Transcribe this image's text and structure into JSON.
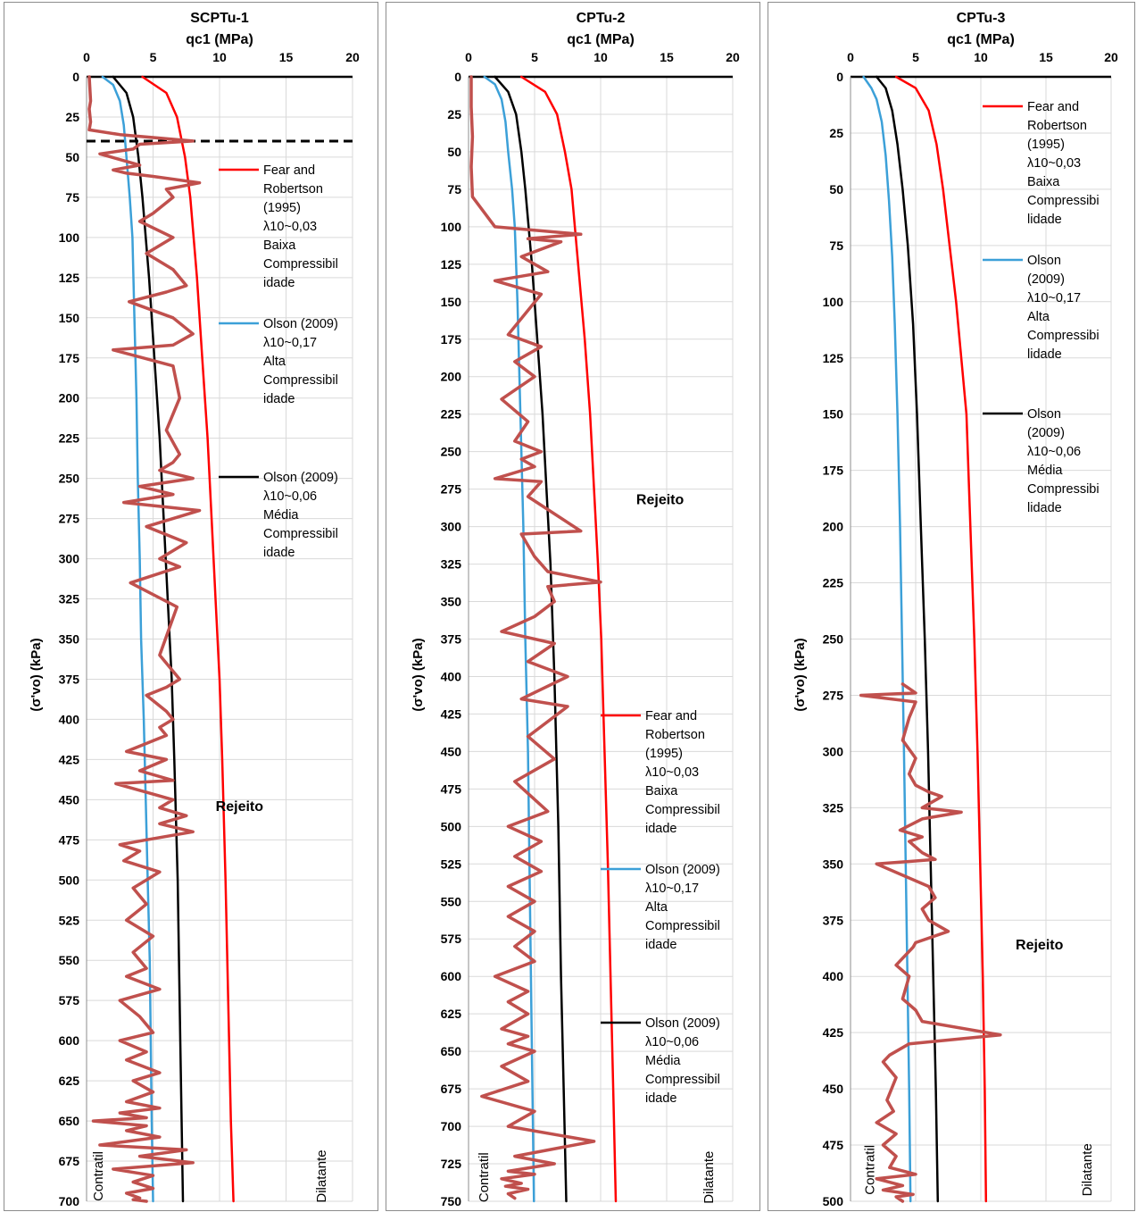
{
  "chart_data": [
    {
      "type": "line",
      "title": "SCPTu-1",
      "xlabel": "qc1 (MPa)",
      "ylabel": "(σ'vo) (kPa)",
      "xlim": [
        0,
        20
      ],
      "ylim": [
        0,
        700
      ],
      "y_inverted": true,
      "x_ticks": [
        0,
        5,
        10,
        15,
        20
      ],
      "y_ticks": [
        0,
        25,
        50,
        75,
        100,
        125,
        150,
        175,
        200,
        225,
        250,
        275,
        300,
        325,
        350,
        375,
        400,
        425,
        450,
        475,
        500,
        525,
        550,
        575,
        600,
        625,
        650,
        675,
        700
      ],
      "grid": true,
      "legend_position": "upper-middle-right",
      "series": [
        {
          "name": "Fear and Robertson (1995) λ10~0,03 Baixa Compressibilidade",
          "color": "#ff0000",
          "kind": "curve",
          "x": [
            4.2,
            6.0,
            6.8,
            7.4,
            7.8,
            8.3,
            8.7,
            9.1,
            9.4,
            9.7,
            10.0,
            10.2,
            10.45,
            10.65,
            10.85,
            11.05
          ],
          "y": [
            0,
            10,
            25,
            50,
            75,
            125,
            175,
            225,
            275,
            325,
            375,
            425,
            500,
            575,
            650,
            700
          ]
        },
        {
          "name": "Olson (2009) λ10~0,17 Alta Compressibilidade",
          "color": "#3ca0d8",
          "kind": "curve",
          "x": [
            1.2,
            2.0,
            2.5,
            2.8,
            3.0,
            3.25,
            3.45,
            3.6,
            3.75,
            3.85,
            4.0,
            4.1,
            4.3,
            4.45,
            4.6,
            4.75,
            4.9,
            5.0
          ],
          "y": [
            0,
            5,
            15,
            30,
            50,
            75,
            100,
            150,
            200,
            250,
            300,
            350,
            400,
            450,
            500,
            550,
            650,
            700
          ]
        },
        {
          "name": "Olson (2009) λ10~0,06 Média Compressibilidade",
          "color": "#000000",
          "kind": "curve",
          "x": [
            2.0,
            3.0,
            3.5,
            3.9,
            4.2,
            4.7,
            5.1,
            5.5,
            5.8,
            6.1,
            6.4,
            6.6,
            6.85,
            7.05,
            7.25
          ],
          "y": [
            0,
            10,
            25,
            50,
            75,
            125,
            175,
            225,
            275,
            325,
            375,
            425,
            500,
            600,
            700
          ]
        },
        {
          "name": "",
          "color": "#c0504d",
          "kind": "measured",
          "x": [
            0.2,
            0.3,
            0.2,
            0.3,
            0.2,
            2.5,
            8.0,
            4.0,
            3.5,
            1.0,
            4.0,
            2.0,
            3.0,
            5.0,
            8.5,
            6.0,
            6.5,
            5.0,
            4.0,
            6.5,
            4.5,
            6.5,
            7.5,
            6.0,
            3.2,
            6.5,
            8.0,
            6.5,
            2.0,
            6.5,
            7.0,
            6.0,
            7.0,
            6.5,
            5.5,
            8.0,
            4.0,
            6.5,
            2.8,
            8.5,
            4.5,
            7.5,
            5.5,
            7.0,
            3.3,
            6.8,
            5.5,
            7.0,
            6.0,
            4.5,
            6.0,
            6.5,
            5.5,
            6.0,
            3.0,
            6.0,
            4.0,
            6.5,
            2.2,
            6.5,
            5.5,
            7.5,
            5.5,
            8.0,
            4.5,
            2.5,
            4.0,
            2.8,
            5.5,
            3.5,
            4.5,
            3.0,
            5.0,
            3.5,
            4.5,
            3.0,
            5.5,
            2.5,
            4.0,
            5.0,
            2.5,
            4.5,
            3.0,
            5.5,
            3.5,
            5.0,
            3.0,
            5.5,
            2.5,
            4.5,
            0.5,
            4.5,
            3.0,
            5.5,
            1.0,
            7.5,
            4.0,
            8.0,
            2.0,
            5.0,
            3.5,
            5.0,
            3.0,
            4.0,
            3.5,
            4.5
          ],
          "y": [
            0,
            15,
            20,
            28,
            33,
            36,
            40,
            42,
            45,
            48,
            55,
            58,
            60,
            62,
            66,
            70,
            75,
            85,
            90,
            100,
            110,
            120,
            130,
            134,
            140,
            150,
            160,
            167,
            170,
            180,
            200,
            220,
            235,
            240,
            245,
            250,
            255,
            260,
            265,
            270,
            280,
            290,
            300,
            305,
            315,
            330,
            360,
            375,
            380,
            385,
            395,
            400,
            405,
            410,
            420,
            425,
            432,
            438,
            440,
            450,
            455,
            460,
            465,
            470,
            475,
            478,
            482,
            488,
            495,
            505,
            515,
            525,
            535,
            545,
            555,
            560,
            568,
            575,
            585,
            595,
            600,
            607,
            612,
            620,
            625,
            632,
            638,
            642,
            645,
            648,
            650,
            653,
            656,
            660,
            665,
            668,
            672,
            676,
            680,
            684,
            688,
            692,
            695,
            698,
            699,
            700
          ]
        }
      ],
      "annotations": [
        {
          "text": "Rejeito",
          "x": 11.5,
          "y": 457
        },
        {
          "text": "Contratil",
          "x": 1.2,
          "y": 690
        },
        {
          "text": "Dilatante",
          "x": 18.0,
          "y": 690
        }
      ],
      "reference_line": {
        "style": "dashed",
        "color": "#000000",
        "y": 40
      }
    },
    {
      "type": "line",
      "title": "CPTu-2",
      "xlabel": "qc1 (MPa)",
      "ylabel": "(σ'vo) (kPa)",
      "xlim": [
        0,
        20
      ],
      "ylim": [
        0,
        750
      ],
      "y_inverted": true,
      "x_ticks": [
        0,
        5,
        10,
        15,
        20
      ],
      "y_ticks": [
        0,
        25,
        50,
        75,
        100,
        125,
        150,
        175,
        200,
        225,
        250,
        275,
        300,
        325,
        350,
        375,
        400,
        425,
        450,
        475,
        500,
        525,
        550,
        575,
        600,
        625,
        650,
        675,
        700,
        725,
        750
      ],
      "grid": true,
      "legend_position": "lower-right",
      "series": [
        {
          "name": "Fear and Robertson (1995) λ10~0,03 Baixa Compressibilidade",
          "color": "#ff0000",
          "kind": "curve",
          "x": [
            4.0,
            5.8,
            6.7,
            7.3,
            7.8,
            8.3,
            8.8,
            9.2,
            9.5,
            9.8,
            10.05,
            10.3,
            10.55,
            10.75,
            10.95,
            11.15
          ],
          "y": [
            0,
            10,
            25,
            50,
            75,
            125,
            175,
            225,
            275,
            325,
            375,
            450,
            525,
            600,
            675,
            750
          ]
        },
        {
          "name": "Olson (2009) λ10~0,17 Alta Compressibilidade",
          "color": "#3ca0d8",
          "kind": "curve",
          "x": [
            1.2,
            2.0,
            2.5,
            2.8,
            3.0,
            3.3,
            3.5,
            3.7,
            3.85,
            4.0,
            4.15,
            4.3,
            4.5,
            4.65,
            4.8,
            4.95
          ],
          "y": [
            0,
            5,
            15,
            30,
            50,
            75,
            100,
            150,
            200,
            250,
            300,
            375,
            450,
            550,
            650,
            750
          ]
        },
        {
          "name": "Olson (2009) λ10~0,06 Média Compressibilidade",
          "color": "#000000",
          "kind": "curve",
          "x": [
            2.0,
            3.0,
            3.6,
            4.0,
            4.3,
            4.8,
            5.2,
            5.6,
            5.9,
            6.2,
            6.5,
            6.8,
            7.0,
            7.2,
            7.4
          ],
          "y": [
            0,
            10,
            25,
            50,
            75,
            125,
            175,
            225,
            275,
            325,
            400,
            500,
            600,
            675,
            750
          ]
        },
        {
          "name": "",
          "color": "#c0504d",
          "kind": "measured",
          "x": [
            0.2,
            0.2,
            0.3,
            0.2,
            0.3,
            2.0,
            8.5,
            4.5,
            7.0,
            4.0,
            6.0,
            2.0,
            5.5,
            3.0,
            5.5,
            3.5,
            5.0,
            2.5,
            4.5,
            3.5,
            5.5,
            4.0,
            5.0,
            2.0,
            5.5,
            4.5,
            8.5,
            4.0,
            5.0,
            6.0,
            10.0,
            6.0,
            6.5,
            5.0,
            2.5,
            6.5,
            4.5,
            7.5,
            4.0,
            7.5,
            4.5,
            6.5,
            3.5,
            6.0,
            3.0,
            5.5,
            3.5,
            5.5,
            3.0,
            5.0,
            3.0,
            5.0,
            3.5,
            5.0,
            2.0,
            4.5,
            3.0,
            4.5,
            2.5,
            4.5,
            3.0,
            5.0,
            2.5,
            4.5,
            1.0,
            5.0,
            3.0,
            9.5,
            3.5,
            6.5,
            3.0,
            5.0,
            2.5,
            4.0,
            2.8,
            4.5,
            3.0,
            3.5
          ],
          "y": [
            0,
            20,
            40,
            60,
            80,
            100,
            105,
            108,
            110,
            120,
            130,
            136,
            145,
            172,
            180,
            190,
            200,
            215,
            230,
            243,
            250,
            255,
            260,
            268,
            270,
            280,
            303,
            305,
            320,
            330,
            337,
            340,
            350,
            360,
            370,
            378,
            390,
            400,
            415,
            420,
            440,
            455,
            470,
            490,
            500,
            510,
            520,
            530,
            540,
            550,
            560,
            570,
            580,
            590,
            600,
            610,
            617,
            625,
            635,
            640,
            645,
            650,
            660,
            670,
            680,
            690,
            700,
            710,
            720,
            725,
            730,
            732,
            735,
            738,
            740,
            742,
            745,
            748
          ]
        }
      ],
      "annotations": [
        {
          "text": "Rejeito",
          "x": 14.5,
          "y": 285
        },
        {
          "text": "Contratil",
          "x": 1.5,
          "y": 740
        },
        {
          "text": "Dilatante",
          "x": 18.5,
          "y": 740
        }
      ]
    },
    {
      "type": "line",
      "title": "CPTu-3",
      "xlabel": "qc1 (MPa)",
      "ylabel": "(σ'vo) (kPa)",
      "xlim": [
        0,
        20
      ],
      "ylim": [
        0,
        500
      ],
      "y_inverted": true,
      "x_ticks": [
        0,
        5,
        10,
        15,
        20
      ],
      "y_ticks": [
        0,
        25,
        50,
        75,
        100,
        125,
        150,
        175,
        200,
        225,
        250,
        275,
        300,
        325,
        350,
        375,
        400,
        425,
        450,
        475,
        500
      ],
      "grid": true,
      "legend_position": "upper-right",
      "series": [
        {
          "name": "Fear and Robertson (1995) λ10~0,03 Baixa Compressibilidade",
          "color": "#ff0000",
          "kind": "curve",
          "x": [
            3.5,
            5.0,
            6.0,
            6.6,
            7.1,
            7.6,
            8.1,
            8.5,
            8.9,
            9.2,
            9.5,
            9.75,
            9.95,
            10.15,
            10.3,
            10.4
          ],
          "y": [
            0,
            5,
            15,
            30,
            50,
            75,
            100,
            125,
            150,
            200,
            250,
            300,
            350,
            400,
            450,
            500
          ]
        },
        {
          "name": "Olson (2009) λ10~0,17 Alta Compressibilidade",
          "color": "#3ca0d8",
          "kind": "curve",
          "x": [
            1.0,
            1.6,
            2.0,
            2.4,
            2.7,
            2.95,
            3.2,
            3.4,
            3.6,
            3.8,
            3.95,
            4.1,
            4.3,
            4.5,
            4.6
          ],
          "y": [
            0,
            5,
            10,
            20,
            35,
            55,
            80,
            110,
            150,
            200,
            250,
            300,
            375,
            450,
            500
          ]
        },
        {
          "name": "Olson (2009) λ10~0,06 Média Compressibilidade",
          "color": "#000000",
          "kind": "curve",
          "x": [
            2.0,
            2.7,
            3.2,
            3.6,
            4.0,
            4.4,
            4.8,
            5.1,
            5.4,
            5.7,
            5.95,
            6.15,
            6.35,
            6.55,
            6.7
          ],
          "y": [
            0,
            5,
            15,
            30,
            50,
            75,
            110,
            150,
            200,
            250,
            300,
            350,
            400,
            450,
            500
          ]
        },
        {
          "name": "",
          "color": "#c0504d",
          "kind": "measured",
          "x": [
            4.0,
            5.0,
            0.8,
            5.0,
            4.5,
            4.0,
            5.0,
            4.5,
            5.0,
            6.0,
            7.0,
            5.5,
            8.5,
            5.5,
            3.8,
            5.5,
            4.5,
            5.5,
            6.5,
            2.0,
            6.0,
            6.5,
            5.5,
            6.0,
            7.5,
            5.0,
            4.8,
            3.5,
            4.5,
            4.0,
            5.0,
            5.5,
            11.5,
            4.5,
            3.0,
            2.5,
            3.5,
            2.8,
            3.3,
            2.0,
            3.5,
            2.5,
            3.5,
            3.0,
            5.0,
            2.0,
            4.0,
            2.5,
            4.8,
            3.5,
            4.0
          ],
          "y": [
            270,
            274,
            275,
            278,
            285,
            295,
            303,
            310,
            315,
            318,
            320,
            325,
            327,
            330,
            335,
            338,
            340,
            345,
            348,
            350,
            360,
            365,
            370,
            375,
            380,
            385,
            387,
            395,
            400,
            410,
            415,
            420,
            426,
            430,
            435,
            438,
            445,
            455,
            460,
            465,
            470,
            475,
            480,
            485,
            488,
            490,
            493,
            495,
            497,
            498,
            500
          ]
        }
      ],
      "annotations": [
        {
          "text": "Rejeito",
          "x": 14.5,
          "y": 388
        },
        {
          "text": "Contratil",
          "x": 1.8,
          "y": 490
        },
        {
          "text": "Dilatante",
          "x": 18.5,
          "y": 490
        }
      ]
    }
  ]
}
